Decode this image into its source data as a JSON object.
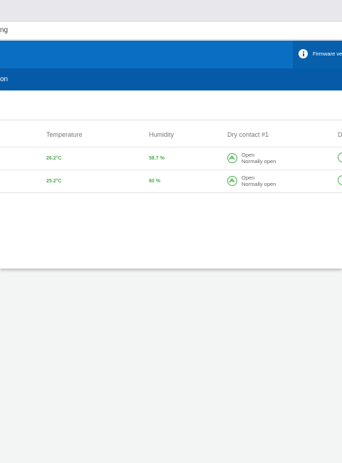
{
  "browser": {
    "address_text": "ng"
  },
  "header": {
    "firmware_text": "Firmware ve",
    "nav_label": "on"
  },
  "table": {
    "columns": [
      "Temperature",
      "Humidity",
      "Dry contact #1",
      "D"
    ],
    "rows": [
      {
        "temperature": "26.2°C",
        "humidity": "58.7 %",
        "contact1_status": "Open",
        "contact1_mode": "Normally open"
      },
      {
        "temperature": "25.2°C",
        "humidity": "60 %",
        "contact1_status": "Open",
        "contact1_mode": "Normally open"
      }
    ]
  },
  "colors": {
    "header_blue": "#0a6fc2",
    "nav_blue": "#055ba8",
    "status_green": "#4cae4f"
  },
  "icons": {
    "info": "info-icon",
    "contact": "contact-open-icon"
  }
}
